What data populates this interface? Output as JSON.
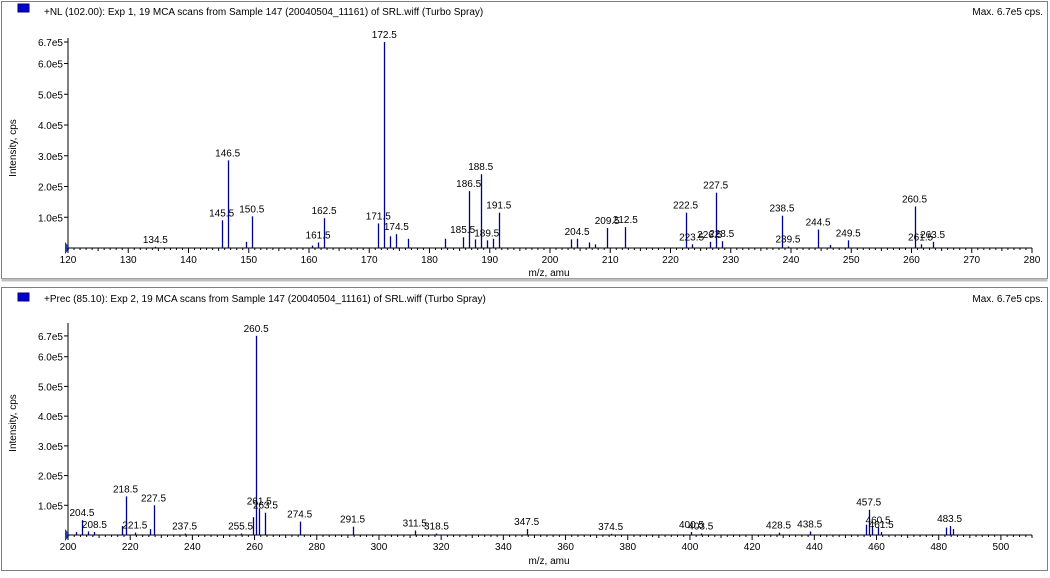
{
  "colors": {
    "peak": "#00008b",
    "panel_border": "#7f7f7f",
    "marker": "#0000cc",
    "frame": "#9a9a9a"
  },
  "icons": {
    "panel_marker": "blue-square-icon"
  },
  "chart_data": [
    {
      "type": "bar",
      "title": "+NL (102.00): Exp 1, 19 MCA scans from Sample 147 (20040504_11161) of SRL.wiff (Turbo Spray)",
      "max_label": "Max. 6.7e5 cps.",
      "xlabel": "m/z, amu",
      "ylabel": "Intensity, cps",
      "xlim": [
        120,
        280
      ],
      "ylim": [
        0,
        670000
      ],
      "x_ticks": [
        "120",
        "130",
        "140",
        "150",
        "160",
        "170",
        "180",
        "190",
        "200",
        "210",
        "220",
        "230",
        "240",
        "250",
        "260",
        "270",
        "280"
      ],
      "x_tick_values": [
        120,
        130,
        140,
        150,
        160,
        170,
        180,
        190,
        200,
        210,
        220,
        230,
        240,
        250,
        260,
        270,
        280
      ],
      "y_ticks": [
        "1.0e5",
        "2.0e5",
        "3.0e5",
        "4.0e5",
        "5.0e5",
        "6.0e5",
        "6.7e5"
      ],
      "y_tick_values": [
        100000,
        200000,
        300000,
        400000,
        500000,
        600000,
        670000
      ],
      "peaks": [
        {
          "x": 134.5,
          "y": 4000,
          "label": "134.5"
        },
        {
          "x": 145.5,
          "y": 90000,
          "label": "145.5"
        },
        {
          "x": 146.5,
          "y": 285000,
          "label": "146.5"
        },
        {
          "x": 149.5,
          "y": 20000
        },
        {
          "x": 150.5,
          "y": 103000,
          "label": "150.5"
        },
        {
          "x": 160.5,
          "y": 8000
        },
        {
          "x": 161.5,
          "y": 18000,
          "label": "161.5"
        },
        {
          "x": 162.5,
          "y": 97000,
          "label": "162.5"
        },
        {
          "x": 171.5,
          "y": 80000,
          "label": "171.5"
        },
        {
          "x": 172.5,
          "y": 670000,
          "label": "172.5"
        },
        {
          "x": 173.5,
          "y": 38000
        },
        {
          "x": 174.5,
          "y": 45000,
          "label": "174.5"
        },
        {
          "x": 176.5,
          "y": 30000
        },
        {
          "x": 182.5,
          "y": 30000
        },
        {
          "x": 185.5,
          "y": 35000,
          "label": "185.5"
        },
        {
          "x": 186.5,
          "y": 185000,
          "label": "186.5"
        },
        {
          "x": 187.5,
          "y": 28000
        },
        {
          "x": 188.5,
          "y": 240000,
          "label": "188.5"
        },
        {
          "x": 189.5,
          "y": 25000,
          "label": "189.5"
        },
        {
          "x": 190.5,
          "y": 30000
        },
        {
          "x": 191.5,
          "y": 115000,
          "label": "191.5"
        },
        {
          "x": 203.5,
          "y": 28000
        },
        {
          "x": 204.5,
          "y": 30000,
          "label": "204.5"
        },
        {
          "x": 206.5,
          "y": 18000
        },
        {
          "x": 207.5,
          "y": 12000
        },
        {
          "x": 209.5,
          "y": 65000,
          "label": "209.5"
        },
        {
          "x": 212.5,
          "y": 68000,
          "label": "212.5"
        },
        {
          "x": 222.5,
          "y": 115000,
          "label": "222.5"
        },
        {
          "x": 223.5,
          "y": 12000,
          "label": "223.5"
        },
        {
          "x": 226.5,
          "y": 20000,
          "label": "226.5"
        },
        {
          "x": 227.5,
          "y": 180000,
          "label": "227.5"
        },
        {
          "x": 228.5,
          "y": 22000,
          "label": "228.5"
        },
        {
          "x": 238.5,
          "y": 105000,
          "label": "238.5"
        },
        {
          "x": 239.5,
          "y": 5000,
          "label": "239.5"
        },
        {
          "x": 244.5,
          "y": 60000,
          "label": "244.5"
        },
        {
          "x": 246.5,
          "y": 10000
        },
        {
          "x": 249.5,
          "y": 25000,
          "label": "249.5"
        },
        {
          "x": 260.5,
          "y": 135000,
          "label": "260.5"
        },
        {
          "x": 261.5,
          "y": 12000,
          "label": "261.5"
        },
        {
          "x": 263.5,
          "y": 20000,
          "label": "263.5"
        }
      ]
    },
    {
      "type": "bar",
      "title": "+Prec (85.10): Exp 2, 19 MCA scans from Sample 147 (20040504_11161) of SRL.wiff (Turbo Spray)",
      "max_label": "Max. 6.7e5 cps.",
      "xlabel": "m/z, amu",
      "ylabel": "Intensity, cps",
      "xlim": [
        200,
        510
      ],
      "ylim": [
        0,
        700000
      ],
      "x_ticks": [
        "200",
        "220",
        "240",
        "260",
        "280",
        "300",
        "320",
        "340",
        "360",
        "380",
        "400",
        "420",
        "440",
        "460",
        "480",
        "500"
      ],
      "x_tick_values": [
        200,
        220,
        240,
        260,
        280,
        300,
        320,
        340,
        360,
        380,
        400,
        420,
        440,
        460,
        480,
        500
      ],
      "y_ticks": [
        "1.0e5",
        "2.0e5",
        "3.0e5",
        "4.0e5",
        "5.0e5",
        "6.0e5",
        "6.7e5"
      ],
      "y_tick_values": [
        100000,
        200000,
        300000,
        400000,
        500000,
        600000,
        670000
      ],
      "peaks": [
        {
          "x": 202.5,
          "y": 10000
        },
        {
          "x": 204.5,
          "y": 50000,
          "label": "204.5"
        },
        {
          "x": 206.5,
          "y": 12000
        },
        {
          "x": 208.5,
          "y": 10000,
          "label": "208.5"
        },
        {
          "x": 217.5,
          "y": 30000
        },
        {
          "x": 218.5,
          "y": 130000,
          "label": "218.5"
        },
        {
          "x": 221.5,
          "y": 8000,
          "label": "221.5"
        },
        {
          "x": 226.5,
          "y": 20000
        },
        {
          "x": 227.5,
          "y": 100000,
          "label": "227.5"
        },
        {
          "x": 237.5,
          "y": 5000,
          "label": "237.5"
        },
        {
          "x": 255.5,
          "y": 5000,
          "label": "255.5"
        },
        {
          "x": 259.5,
          "y": 60000
        },
        {
          "x": 260.5,
          "y": 670000,
          "label": "260.5"
        },
        {
          "x": 261.5,
          "y": 90000,
          "label": "261.5"
        },
        {
          "x": 263.5,
          "y": 75000,
          "label": "263.5"
        },
        {
          "x": 274.5,
          "y": 45000,
          "label": "274.5"
        },
        {
          "x": 291.5,
          "y": 28000,
          "label": "291.5"
        },
        {
          "x": 311.5,
          "y": 15000,
          "label": "311.5"
        },
        {
          "x": 318.5,
          "y": 5000,
          "label": "318.5"
        },
        {
          "x": 347.5,
          "y": 20000,
          "label": "347.5"
        },
        {
          "x": 374.5,
          "y": 4000,
          "label": "374.5"
        },
        {
          "x": 400.5,
          "y": 10000,
          "label": "400.5"
        },
        {
          "x": 403.5,
          "y": 5000,
          "label": "403.5"
        },
        {
          "x": 428.5,
          "y": 8000,
          "label": "428.5"
        },
        {
          "x": 438.5,
          "y": 12000,
          "label": "438.5"
        },
        {
          "x": 456.5,
          "y": 35000
        },
        {
          "x": 457.5,
          "y": 85000,
          "label": "457.5"
        },
        {
          "x": 458.5,
          "y": 30000
        },
        {
          "x": 460.5,
          "y": 25000,
          "label": "460.5"
        },
        {
          "x": 461.5,
          "y": 10000,
          "label": "461.5"
        },
        {
          "x": 482.5,
          "y": 25000
        },
        {
          "x": 483.5,
          "y": 30000,
          "label": "483.5"
        },
        {
          "x": 484.5,
          "y": 20000
        }
      ]
    }
  ]
}
